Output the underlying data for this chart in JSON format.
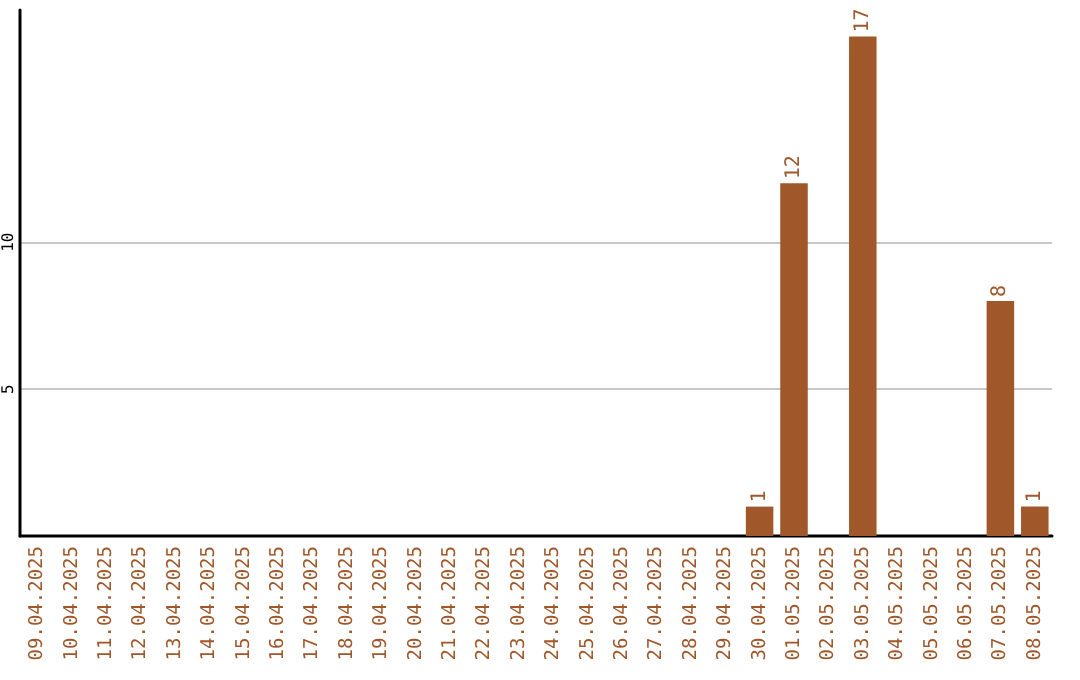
{
  "chart_data": {
    "type": "bar",
    "categories": [
      "09.04.2025",
      "10.04.2025",
      "11.04.2025",
      "12.04.2025",
      "13.04.2025",
      "14.04.2025",
      "15.04.2025",
      "16.04.2025",
      "17.04.2025",
      "18.04.2025",
      "19.04.2025",
      "20.04.2025",
      "21.04.2025",
      "22.04.2025",
      "23.04.2025",
      "24.04.2025",
      "25.04.2025",
      "26.04.2025",
      "27.04.2025",
      "28.04.2025",
      "29.04.2025",
      "30.04.2025",
      "01.05.2025",
      "02.05.2025",
      "03.05.2025",
      "04.05.2025",
      "05.05.2025",
      "06.05.2025",
      "07.05.2025",
      "08.05.2025"
    ],
    "values": [
      0,
      0,
      0,
      0,
      0,
      0,
      0,
      0,
      0,
      0,
      0,
      0,
      0,
      0,
      0,
      0,
      0,
      0,
      0,
      0,
      0,
      1,
      12,
      0,
      17,
      0,
      0,
      0,
      8,
      1
    ],
    "value_labels": [
      null,
      null,
      null,
      null,
      null,
      null,
      null,
      null,
      null,
      null,
      null,
      null,
      null,
      null,
      null,
      null,
      null,
      null,
      null,
      null,
      null,
      "1",
      "12",
      null,
      "17",
      null,
      null,
      null,
      "8",
      "1"
    ],
    "color": "#a0572a",
    "ylim": [
      0,
      17.9
    ],
    "yticks": [
      5,
      10
    ],
    "grid": "y"
  }
}
